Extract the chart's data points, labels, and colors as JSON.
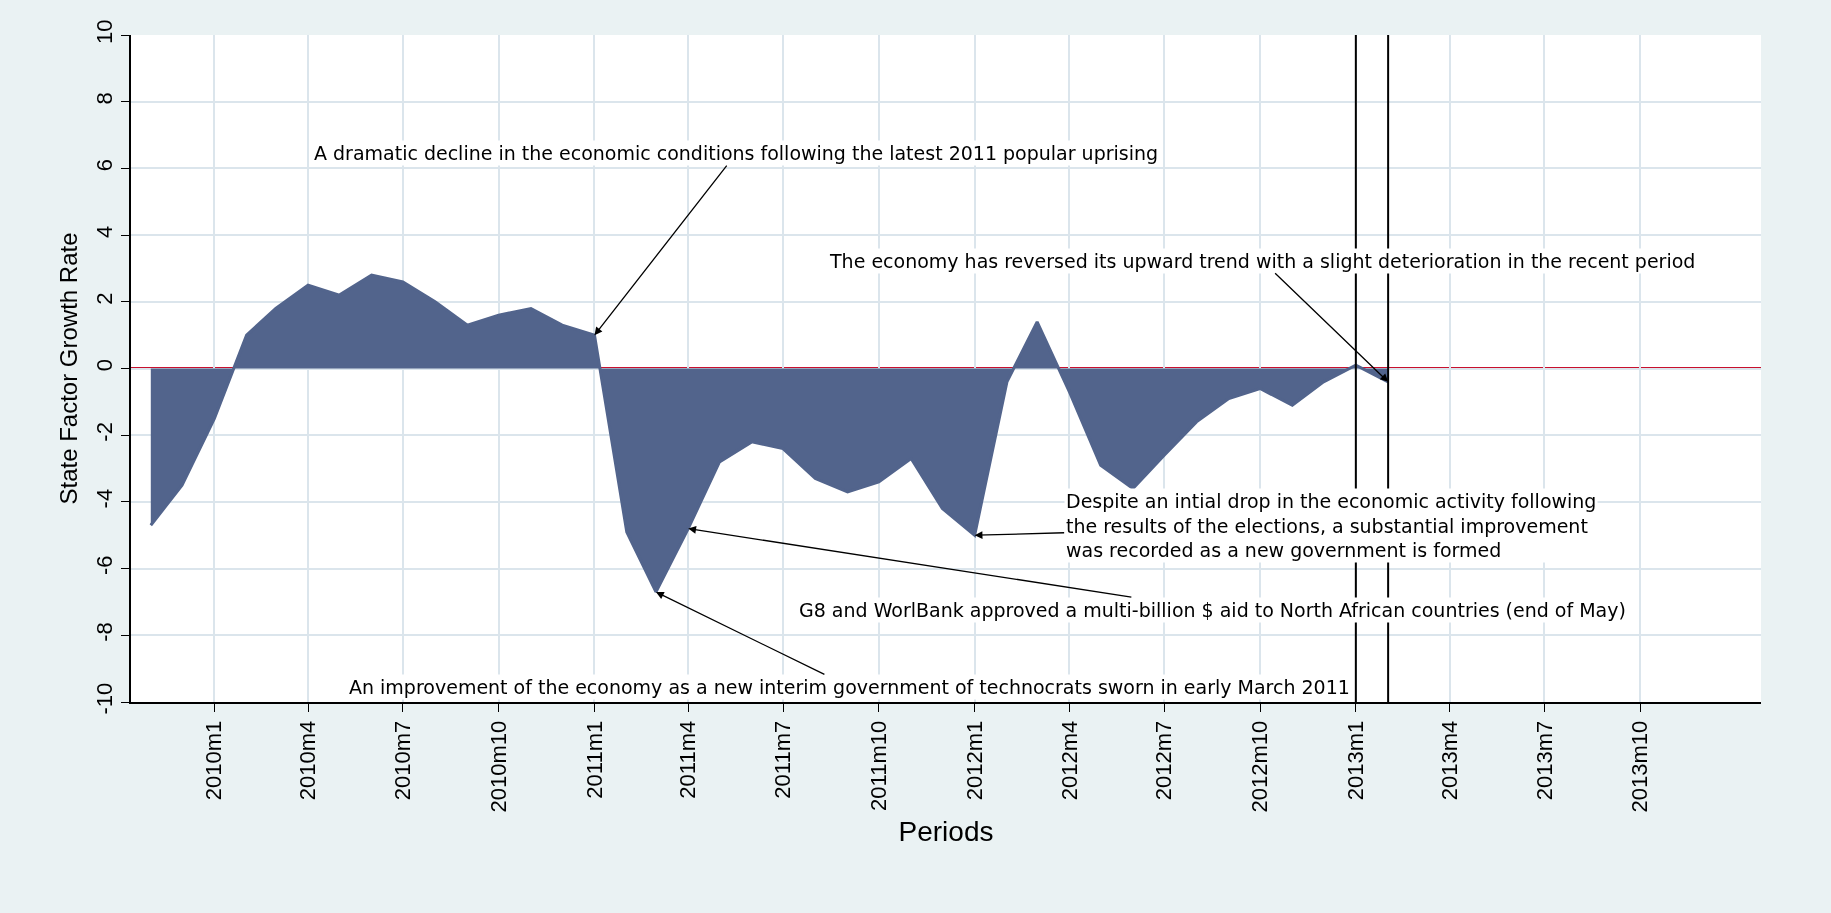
{
  "chart_data": {
    "type": "area",
    "xlabel": "Periods",
    "ylabel": "State Factor Growth Rate",
    "x": [
      "2009-11",
      "2009-12",
      "2010-01",
      "2010-02",
      "2010-03",
      "2010-04",
      "2010-05",
      "2010-06",
      "2010-07",
      "2010-08",
      "2010-09",
      "2010-10",
      "2010-11",
      "2010-12",
      "2011-01",
      "2011-02",
      "2011-03",
      "2011-04",
      "2011-05",
      "2011-06",
      "2011-07",
      "2011-08",
      "2011-09",
      "2011-10",
      "2011-11",
      "2011-12",
      "2012-01",
      "2012-02",
      "2012-03",
      "2012-04",
      "2012-05",
      "2012-06",
      "2012-07",
      "2012-08",
      "2012-09",
      "2012-10",
      "2012-11",
      "2012-12",
      "2013-01",
      "2013-02"
    ],
    "series": [
      {
        "color": "#52648c",
        "values": [
          -4.7,
          -3.5,
          -1.5,
          1.0,
          1.8,
          2.5,
          2.2,
          2.8,
          2.6,
          2.0,
          1.3,
          1.6,
          1.8,
          1.3,
          1.0,
          -4.9,
          -6.7,
          -4.8,
          -2.8,
          -2.2,
          -2.4,
          -3.3,
          -3.7,
          -3.4,
          -2.7,
          -4.2,
          -5.0,
          -0.4,
          1.4,
          -0.7,
          -2.9,
          -3.6,
          -2.6,
          -1.6,
          -0.9,
          -0.6,
          -1.1,
          -0.4,
          0.1,
          -0.4
        ]
      }
    ],
    "xlim": [
      "2009-10-13",
      "2014-01-25"
    ],
    "xticks": [
      {
        "value": "2010-01",
        "label": "2010m1"
      },
      {
        "value": "2010-04",
        "label": "2010m4"
      },
      {
        "value": "2010-07",
        "label": "2010m7"
      },
      {
        "value": "2010-10",
        "label": "2010m10"
      },
      {
        "value": "2011-01",
        "label": "2011m1"
      },
      {
        "value": "2011-04",
        "label": "2011m4"
      },
      {
        "value": "2011-07",
        "label": "2011m7"
      },
      {
        "value": "2011-10",
        "label": "2011m10"
      },
      {
        "value": "2012-01",
        "label": "2012m1"
      },
      {
        "value": "2012-04",
        "label": "2012m4"
      },
      {
        "value": "2012-07",
        "label": "2012m7"
      },
      {
        "value": "2012-10",
        "label": "2012m10"
      },
      {
        "value": "2013-01",
        "label": "2013m1"
      },
      {
        "value": "2013-04",
        "label": "2013m4"
      },
      {
        "value": "2013-07",
        "label": "2013m7"
      },
      {
        "value": "2013-10",
        "label": "2013m10"
      }
    ],
    "ylim": [
      -10,
      10
    ],
    "yticks": [
      -10,
      -8,
      -6,
      -4,
      -2,
      0,
      2,
      4,
      6,
      8,
      10
    ],
    "grid": true,
    "ref_lines": [
      {
        "axis": "y",
        "value": 0,
        "color": "#c8102e"
      },
      {
        "axis": "x",
        "value": "2013-01",
        "color": "#000000"
      },
      {
        "axis": "x",
        "value": "2013-02",
        "color": "#000000"
      }
    ],
    "annotations": [
      {
        "text": "A dramatic decline in the economic conditions following the latest 2011 popular uprising",
        "x": "2011-01",
        "y": 1.0
      },
      {
        "text": "The economy has reversed its upward trend with a slight deterioration in the recent period",
        "x": "2013-02",
        "y": -0.4
      },
      {
        "text": "Despite an intial drop in the economic activity following\nthe results of the elections, a substantial improvement\nwas recorded as a new government is formed",
        "x": "2012-01",
        "y": -5.0
      },
      {
        "text": "G8 and WorlBank approved a multi-billion $ aid to North African countries (end of May)",
        "x": "2011-04",
        "y": -4.8
      },
      {
        "text": "An improvement of the economy as a new interim government of technocrats sworn in early March 2011",
        "x": "2011-03",
        "y": -6.7
      }
    ]
  }
}
